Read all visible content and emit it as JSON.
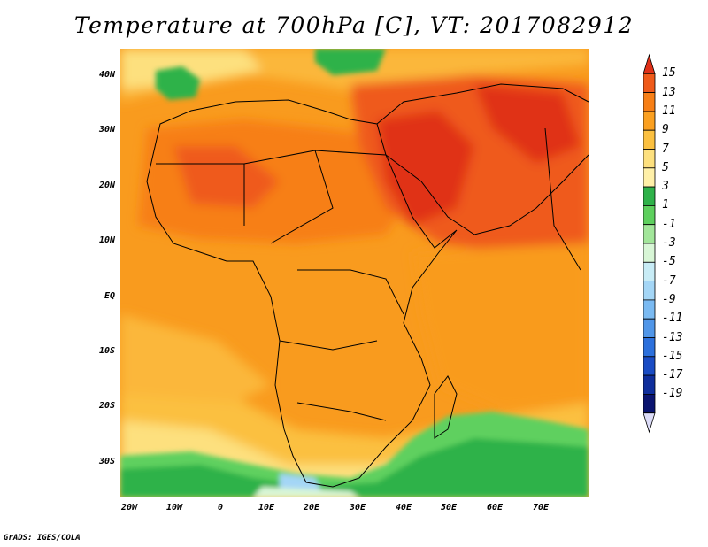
{
  "title": "Temperature at 700hPa [C], VT: 2017082912",
  "credit": "GrADS: IGES/COLA",
  "latitude_labels": [
    "40N",
    "30N",
    "20N",
    "10N",
    "EQ",
    "10S",
    "20S",
    "30S"
  ],
  "longitude_labels": [
    "20W",
    "10W",
    "0",
    "10E",
    "20E",
    "30E",
    "40E",
    "50E",
    "60E",
    "70E"
  ],
  "colorbar": {
    "labels": [
      "15",
      "13",
      "11",
      "9",
      "7",
      "5",
      "3",
      "1",
      "-1",
      "-3",
      "-5",
      "-7",
      "-9",
      "-11",
      "-13",
      "-15",
      "-17",
      "-19"
    ],
    "colors": [
      "#e03018",
      "#ef5a1a",
      "#f77f16",
      "#fba020",
      "#fbc040",
      "#fde07e",
      "#fff0a8",
      "#2fb24a",
      "#5ed05e",
      "#a2e69a",
      "#d8f6d6",
      "#c8ecf6",
      "#a4d6f6",
      "#7abaf2",
      "#5096e8",
      "#2c70dc",
      "#1a4cc4",
      "#0f2e9c",
      "#0a1470",
      "#dcdcf8"
    ]
  }
}
